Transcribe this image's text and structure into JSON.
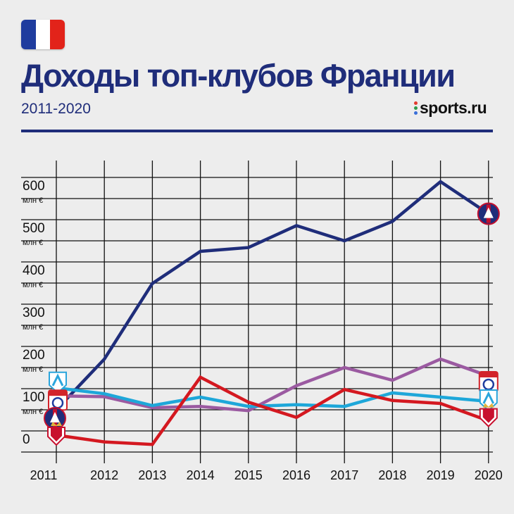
{
  "header": {
    "title": "Доходы топ-клубов Франции",
    "subtitle": "2011-2020",
    "brand": "sports.ru"
  },
  "flag": {
    "icon": "france-flag-icon",
    "colors": [
      "#1f3c9e",
      "#ffffff",
      "#e2231a"
    ]
  },
  "chart_data": {
    "type": "line",
    "x": [
      "2011",
      "2012",
      "2013",
      "2014",
      "2015",
      "2016",
      "2017",
      "2018",
      "2019",
      "2020"
    ],
    "y_ticks": [
      "0",
      "100",
      "200",
      "300",
      "400",
      "500",
      "600"
    ],
    "y_unit": "млн €",
    "ylim": [
      0,
      680
    ],
    "grid": true,
    "series": [
      {
        "color": "#1f2d7a",
        "end_icon": "psg-crest-icon",
        "start_icon": "lyon-crest-icon",
        "values": [
          100,
          220,
          399,
          475,
          484,
          536,
          500,
          546,
          640,
          564
        ]
      },
      {
        "color": "#9b5aa1",
        "end_icon": "lyon-crest-icon",
        "start_icon": "lyon-crest-icon",
        "values": [
          133,
          131,
          105,
          108,
          98,
          157,
          200,
          170,
          220,
          180
        ]
      },
      {
        "color": "#1ea7d9",
        "end_icon": "marseille-crest-icon",
        "start_icon": "marseille-crest-icon",
        "values": [
          152,
          138,
          110,
          130,
          108,
          112,
          108,
          140,
          130,
          120
        ]
      },
      {
        "color": "#d41820",
        "end_icon": "monaco-crest-icon",
        "start_icon": "monaco-crest-icon",
        "values": [
          40,
          24,
          18,
          177,
          118,
          82,
          148,
          122,
          115,
          74
        ]
      }
    ]
  }
}
